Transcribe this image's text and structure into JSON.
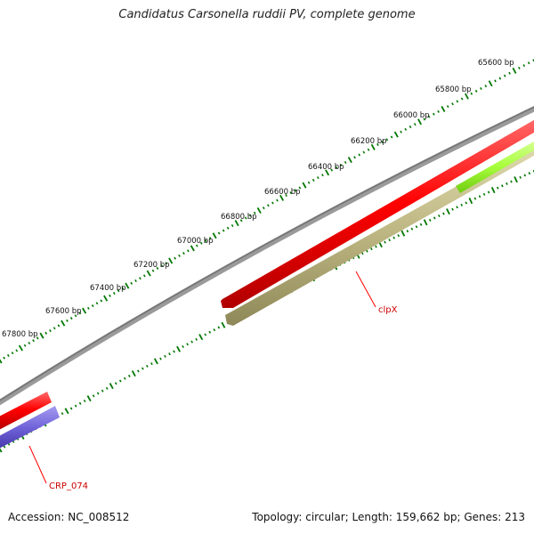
{
  "title": "Candidatus Carsonella ruddii PV, complete genome",
  "footer": {
    "accession": "Accession: NC_008512",
    "summary": "Topology: circular; Length: 159,662 bp; Genes: 213"
  },
  "ticks": [
    {
      "label": "65600 bp"
    },
    {
      "label": "65800 bp"
    },
    {
      "label": "66000 bp"
    },
    {
      "label": "66200 bp"
    },
    {
      "label": "66400 bp"
    },
    {
      "label": "66600 bp"
    },
    {
      "label": "66800 bp"
    },
    {
      "label": "67000 bp"
    },
    {
      "label": "67200 bp"
    },
    {
      "label": "67400 bp"
    },
    {
      "label": "67600 bp"
    },
    {
      "label": "67800 bp"
    }
  ],
  "features": [
    {
      "name": "clpX",
      "label": "clpX",
      "color": "#ff0000"
    },
    {
      "name": "CRP_074",
      "label": "CRP_074",
      "color": "#ff0000"
    }
  ],
  "colors": {
    "backbone": "#8a8a8a",
    "tick": "#007700",
    "feature_red": "#ff1a1a",
    "feature_olive": "#c8c28a",
    "feature_green": "#aaff44",
    "feature_purple": "#7a6ee0"
  }
}
